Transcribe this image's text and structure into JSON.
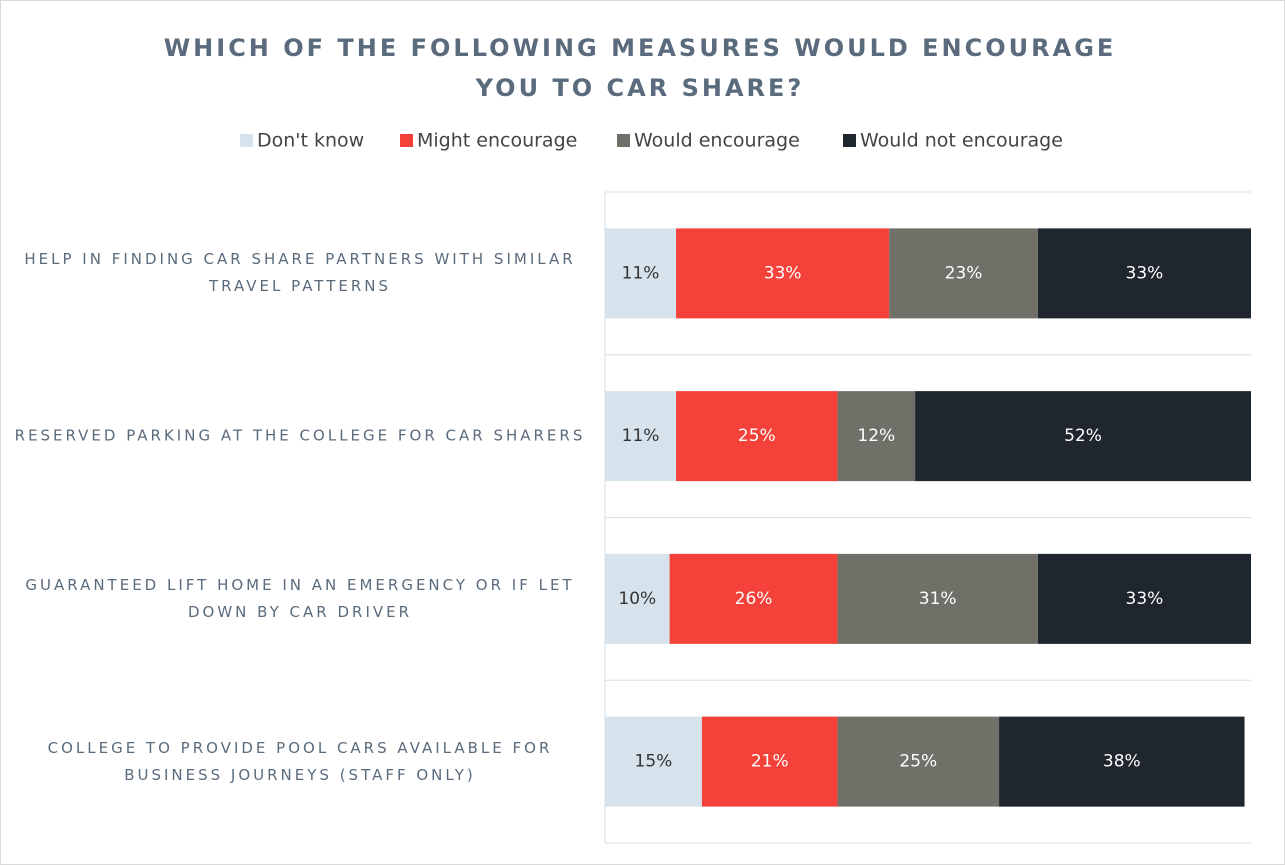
{
  "chart_data": {
    "type": "stacked_barh",
    "title": "WHICH OF THE FOLLOWING MEASURES WOULD ENCOURAGE YOU TO CAR SHARE?",
    "categories": [
      "HELP IN FINDING CAR SHARE PARTNERS WITH SIMILAR TRAVEL PATTERNS",
      "RESERVED PARKING AT THE COLLEGE FOR CAR SHARERS",
      "GUARANTEED LIFT HOME IN AN EMERGENCY OR IF LET DOWN BY CAR DRIVER",
      "COLLEGE TO PROVIDE POOL CARS AVAILABLE FOR BUSINESS JOURNEYS (STAFF ONLY)"
    ],
    "series": [
      {
        "name": "Don't know",
        "color": "#d6e2ec",
        "values": [
          11,
          11,
          10,
          15
        ],
        "value_labels": [
          "11%",
          "11%",
          "10%",
          "15%"
        ]
      },
      {
        "name": "Might encourage",
        "color": "#f4413a",
        "values": [
          33,
          25,
          26,
          21
        ],
        "value_labels": [
          "33%",
          "25%",
          "26%",
          "21%"
        ]
      },
      {
        "name": "Would encourage",
        "color": "#706f68",
        "values": [
          23,
          12,
          31,
          25
        ],
        "value_labels": [
          "23%",
          "12%",
          "31%",
          "25%"
        ]
      },
      {
        "name": "Would not encourage",
        "color": "#1f262e",
        "values": [
          33,
          52,
          33,
          38
        ],
        "value_labels": [
          "33%",
          "52%",
          "33%",
          "38%"
        ]
      }
    ],
    "xlim": [
      0,
      100
    ],
    "legend": "top"
  }
}
